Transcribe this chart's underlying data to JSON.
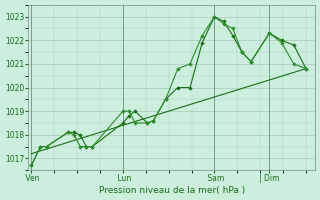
{
  "title": "",
  "xlabel": "Pression niveau de la mer( hPa )",
  "ylim": [
    1016.5,
    1023.5
  ],
  "yticks": [
    1017,
    1018,
    1019,
    1020,
    1021,
    1022,
    1023
  ],
  "background_color": "#cceedd",
  "grid_color": "#99bbaa",
  "line_color": "#1a6e1a",
  "line_color2": "#2d8c2d",
  "xtick_labels": [
    " Ven",
    " Lun",
    " Sam",
    "| Dim"
  ],
  "xtick_positions": [
    0,
    30,
    60,
    78
  ],
  "total_points": 96,
  "series1": [
    [
      0,
      1016.7
    ],
    [
      3,
      1017.5
    ],
    [
      5,
      1017.5
    ],
    [
      12,
      1018.1
    ],
    [
      14,
      1018.1
    ],
    [
      16,
      1018.0
    ],
    [
      18,
      1017.5
    ],
    [
      20,
      1017.5
    ],
    [
      30,
      1018.5
    ],
    [
      32,
      1018.8
    ],
    [
      34,
      1019.0
    ],
    [
      38,
      1018.5
    ],
    [
      40,
      1018.6
    ],
    [
      44,
      1019.5
    ],
    [
      48,
      1020.0
    ],
    [
      52,
      1020.0
    ],
    [
      56,
      1021.9
    ],
    [
      60,
      1023.0
    ],
    [
      63,
      1022.8
    ],
    [
      66,
      1022.2
    ],
    [
      69,
      1021.5
    ],
    [
      72,
      1021.1
    ],
    [
      78,
      1022.3
    ],
    [
      82,
      1022.0
    ],
    [
      86,
      1021.8
    ],
    [
      90,
      1020.8
    ]
  ],
  "series2": [
    [
      0,
      1016.7
    ],
    [
      3,
      1017.5
    ],
    [
      5,
      1017.5
    ],
    [
      12,
      1018.1
    ],
    [
      14,
      1018.0
    ],
    [
      16,
      1017.5
    ],
    [
      18,
      1017.5
    ],
    [
      20,
      1017.5
    ],
    [
      30,
      1019.0
    ],
    [
      32,
      1019.0
    ],
    [
      34,
      1018.5
    ],
    [
      38,
      1018.5
    ],
    [
      40,
      1018.6
    ],
    [
      44,
      1019.5
    ],
    [
      48,
      1020.8
    ],
    [
      52,
      1021.0
    ],
    [
      56,
      1022.2
    ],
    [
      60,
      1023.0
    ],
    [
      63,
      1022.7
    ],
    [
      66,
      1022.5
    ],
    [
      69,
      1021.5
    ],
    [
      72,
      1021.1
    ],
    [
      78,
      1022.3
    ],
    [
      82,
      1021.9
    ],
    [
      86,
      1021.0
    ],
    [
      90,
      1020.8
    ]
  ],
  "series3_straight": [
    [
      0,
      1017.2
    ],
    [
      90,
      1020.8
    ]
  ]
}
